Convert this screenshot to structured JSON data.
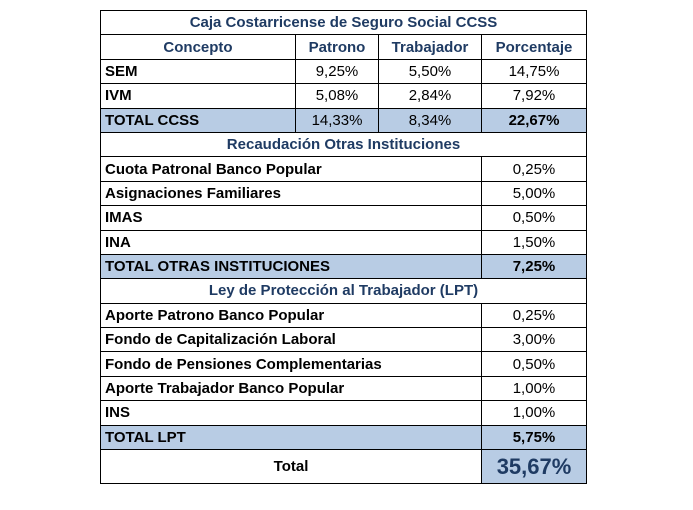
{
  "title": "Caja Costarricense de Seguro Social CCSS",
  "headers": {
    "concepto": "Concepto",
    "patrono": "Patrono",
    "trabajador": "Trabajador",
    "porcentaje": "Porcentaje"
  },
  "ccss": {
    "rows": [
      {
        "concepto": "SEM",
        "patrono": "9,25%",
        "trabajador": "5,50%",
        "porcentaje": "14,75%"
      },
      {
        "concepto": "IVM",
        "patrono": "5,08%",
        "trabajador": "2,84%",
        "porcentaje": "7,92%"
      }
    ],
    "total": {
      "concepto": "TOTAL CCSS",
      "patrono": "14,33%",
      "trabajador": "8,34%",
      "porcentaje": "22,67%"
    }
  },
  "otras": {
    "title": "Recaudación Otras Instituciones",
    "rows": [
      {
        "concepto": "Cuota Patronal Banco Popular",
        "porcentaje": "0,25%"
      },
      {
        "concepto": "Asignaciones Familiares",
        "porcentaje": "5,00%"
      },
      {
        "concepto": "IMAS",
        "porcentaje": "0,50%"
      },
      {
        "concepto": "INA",
        "porcentaje": "1,50%"
      }
    ],
    "total": {
      "concepto": "TOTAL OTRAS INSTITUCIONES",
      "porcentaje": "7,25%"
    }
  },
  "lpt": {
    "title": "Ley de Protección al Trabajador (LPT)",
    "rows": [
      {
        "concepto": "Aporte Patrono Banco Popular",
        "porcentaje": "0,25%"
      },
      {
        "concepto": "Fondo de Capitalización Laboral",
        "porcentaje": "3,00%"
      },
      {
        "concepto": "Fondo de Pensiones Complementarias",
        "porcentaje": "0,50%"
      },
      {
        "concepto": "Aporte Trabajador Banco Popular",
        "porcentaje": "1,00%"
      },
      {
        "concepto": "INS",
        "porcentaje": "1,00%"
      }
    ],
    "total": {
      "concepto": "TOTAL LPT",
      "porcentaje": "5,75%"
    }
  },
  "grand_total": {
    "label": "Total",
    "value": "35,67%"
  }
}
